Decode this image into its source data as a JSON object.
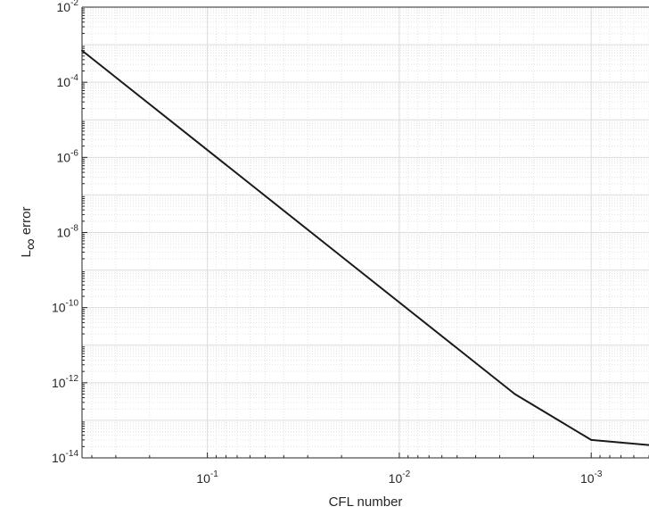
{
  "chart_data": {
    "type": "line",
    "xlabel": "CFL number",
    "ylabel": "L",
    "ylabel_subscript": "∞",
    "ylabel_suffix": " error",
    "x_scale": "log",
    "y_scale": "log",
    "x_reversed": true,
    "xlim": [
      0.45,
      0.0005
    ],
    "ylim": [
      1e-14,
      0.01
    ],
    "grid": true,
    "minor_grid": true,
    "x_ticks": [
      {
        "value": 0.1,
        "base": "10",
        "exp": "-1"
      },
      {
        "value": 0.01,
        "base": "10",
        "exp": "-2"
      },
      {
        "value": 0.001,
        "base": "10",
        "exp": "-3"
      }
    ],
    "y_ticks": [
      {
        "value": 0.01,
        "base": "10",
        "exp": "-2"
      },
      {
        "value": 0.0001,
        "base": "10",
        "exp": "-4"
      },
      {
        "value": 1e-06,
        "base": "10",
        "exp": "-6"
      },
      {
        "value": 1e-08,
        "base": "10",
        "exp": "-8"
      },
      {
        "value": 1e-10,
        "base": "10",
        "exp": "-10"
      },
      {
        "value": 1e-12,
        "base": "10",
        "exp": "-12"
      },
      {
        "value": 1e-14,
        "base": "10",
        "exp": "-14"
      }
    ],
    "series": [
      {
        "color": "#1a1a1a",
        "x": [
          0.45,
          0.0025,
          0.001,
          0.0005
        ],
        "y": [
          0.0007,
          5e-13,
          3e-14,
          2.2e-14
        ]
      }
    ]
  }
}
